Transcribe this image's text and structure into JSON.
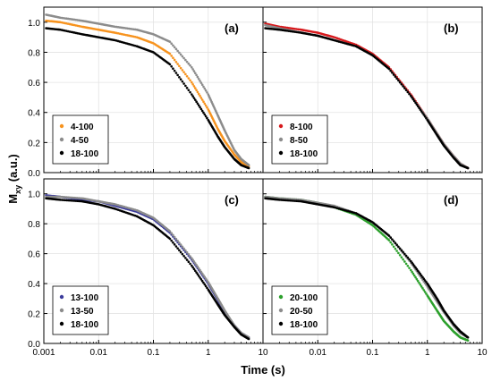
{
  "figure": {
    "ylabel_main": "M",
    "ylabel_sub": "xy",
    "ylabel_unit": " (a.u.)",
    "xlabel": "Time (s)"
  },
  "colors": {
    "orange": "#f7931e",
    "gray": "#8c8c8c",
    "black": "#000000",
    "red": "#d7191c",
    "blue": "#3c3c9c",
    "green": "#2ca02c"
  },
  "chart_data": [
    {
      "panel": "(a)",
      "type": "scatter",
      "xscale": "log",
      "xlim": [
        0.001,
        10
      ],
      "ylim": [
        0,
        1.1
      ],
      "xticks": [
        "0.001",
        "0.01",
        "0.1",
        "1",
        "10"
      ],
      "yticks": [
        "0.0",
        "0.2",
        "0.4",
        "0.6",
        "0.8",
        "1.0"
      ],
      "legend": "bottom-left",
      "grid": true,
      "series": [
        {
          "name": "4-100",
          "color": "#f7931e",
          "x": [
            0.0011,
            0.002,
            0.005,
            0.01,
            0.02,
            0.05,
            0.1,
            0.2,
            0.5,
            1,
            1.5,
            2,
            3,
            4,
            5.5
          ],
          "y": [
            1.01,
            1.0,
            0.97,
            0.95,
            0.93,
            0.9,
            0.86,
            0.79,
            0.6,
            0.42,
            0.29,
            0.21,
            0.12,
            0.07,
            0.04
          ]
        },
        {
          "name": "4-50",
          "color": "#8c8c8c",
          "x": [
            0.0011,
            0.002,
            0.005,
            0.01,
            0.02,
            0.05,
            0.1,
            0.2,
            0.5,
            1,
            1.5,
            2,
            3,
            4,
            5.5
          ],
          "y": [
            1.05,
            1.03,
            1.01,
            0.99,
            0.97,
            0.95,
            0.92,
            0.87,
            0.7,
            0.52,
            0.38,
            0.28,
            0.15,
            0.09,
            0.05
          ]
        },
        {
          "name": "18-100",
          "color": "#000000",
          "x": [
            0.0011,
            0.002,
            0.005,
            0.01,
            0.02,
            0.05,
            0.1,
            0.2,
            0.5,
            1,
            1.5,
            2,
            3,
            4,
            5.5
          ],
          "y": [
            0.96,
            0.95,
            0.92,
            0.9,
            0.88,
            0.84,
            0.8,
            0.72,
            0.52,
            0.35,
            0.24,
            0.17,
            0.09,
            0.05,
            0.03
          ]
        }
      ]
    },
    {
      "panel": "(b)",
      "type": "scatter",
      "xscale": "log",
      "xlim": [
        0.001,
        10
      ],
      "ylim": [
        0,
        1.1
      ],
      "xticks": [
        "0.001",
        "0.01",
        "0.1",
        "1",
        "10"
      ],
      "yticks": [
        "0.0",
        "0.2",
        "0.4",
        "0.6",
        "0.8",
        "1.0"
      ],
      "legend": "bottom-left",
      "grid": true,
      "series": [
        {
          "name": "8-100",
          "color": "#d7191c",
          "x": [
            0.0011,
            0.002,
            0.005,
            0.01,
            0.02,
            0.05,
            0.1,
            0.2,
            0.5,
            1,
            1.5,
            2,
            3,
            4,
            5.5
          ],
          "y": [
            0.99,
            0.97,
            0.95,
            0.93,
            0.9,
            0.85,
            0.79,
            0.7,
            0.52,
            0.36,
            0.26,
            0.19,
            0.11,
            0.06,
            0.03
          ]
        },
        {
          "name": "8-50",
          "color": "#8c8c8c",
          "x": [
            0.0011,
            0.002,
            0.005,
            0.01,
            0.02,
            0.05,
            0.1,
            0.2,
            0.5,
            1,
            1.5,
            2,
            3,
            4,
            5.5
          ],
          "y": [
            0.98,
            0.96,
            0.93,
            0.91,
            0.88,
            0.84,
            0.78,
            0.69,
            0.51,
            0.36,
            0.26,
            0.19,
            0.11,
            0.06,
            0.03
          ]
        },
        {
          "name": "18-100",
          "color": "#000000",
          "x": [
            0.0011,
            0.002,
            0.005,
            0.01,
            0.02,
            0.05,
            0.1,
            0.2,
            0.5,
            1,
            1.5,
            2,
            3,
            4,
            5.5
          ],
          "y": [
            0.96,
            0.95,
            0.93,
            0.91,
            0.88,
            0.84,
            0.78,
            0.69,
            0.51,
            0.35,
            0.25,
            0.18,
            0.1,
            0.05,
            0.03
          ]
        }
      ]
    },
    {
      "panel": "(c)",
      "type": "scatter",
      "xscale": "log",
      "xlim": [
        0.001,
        10
      ],
      "ylim": [
        0,
        1.1
      ],
      "xticks": [
        "0.001",
        "0.01",
        "0.1",
        "1",
        "10"
      ],
      "yticks": [
        "0.0",
        "0.2",
        "0.4",
        "0.6",
        "0.8",
        "1.0"
      ],
      "legend": "bottom-left",
      "grid": true,
      "series": [
        {
          "name": "13-100",
          "color": "#3c3c9c",
          "x": [
            0.0011,
            0.002,
            0.005,
            0.01,
            0.02,
            0.05,
            0.1,
            0.2,
            0.5,
            1,
            1.5,
            2,
            3,
            4,
            5.5
          ],
          "y": [
            0.99,
            0.98,
            0.96,
            0.95,
            0.92,
            0.88,
            0.83,
            0.74,
            0.56,
            0.4,
            0.29,
            0.21,
            0.12,
            0.07,
            0.04
          ]
        },
        {
          "name": "13-50",
          "color": "#8c8c8c",
          "x": [
            0.0011,
            0.002,
            0.005,
            0.01,
            0.02,
            0.05,
            0.1,
            0.2,
            0.5,
            1,
            1.5,
            2,
            3,
            4,
            5.5
          ],
          "y": [
            0.98,
            0.98,
            0.97,
            0.95,
            0.93,
            0.89,
            0.84,
            0.75,
            0.57,
            0.41,
            0.3,
            0.22,
            0.12,
            0.07,
            0.04
          ]
        },
        {
          "name": "18-100",
          "color": "#000000",
          "x": [
            0.0011,
            0.002,
            0.005,
            0.01,
            0.02,
            0.05,
            0.1,
            0.2,
            0.5,
            1,
            1.5,
            2,
            3,
            4,
            5.5
          ],
          "y": [
            0.97,
            0.96,
            0.95,
            0.93,
            0.9,
            0.85,
            0.79,
            0.7,
            0.52,
            0.36,
            0.26,
            0.19,
            0.11,
            0.06,
            0.03
          ]
        }
      ]
    },
    {
      "panel": "(d)",
      "type": "scatter",
      "xscale": "log",
      "xlim": [
        0.001,
        10
      ],
      "ylim": [
        0,
        1.1
      ],
      "xticks": [
        "0.001",
        "0.01",
        "0.1",
        "1",
        "10"
      ],
      "yticks": [
        "0.0",
        "0.2",
        "0.4",
        "0.6",
        "0.8",
        "1.0"
      ],
      "legend": "bottom-left",
      "grid": true,
      "series": [
        {
          "name": "20-100",
          "color": "#2ca02c",
          "x": [
            0.0011,
            0.002,
            0.005,
            0.01,
            0.02,
            0.05,
            0.1,
            0.2,
            0.5,
            1,
            1.5,
            2,
            3,
            4,
            5.5
          ],
          "y": [
            0.98,
            0.97,
            0.96,
            0.94,
            0.91,
            0.86,
            0.79,
            0.69,
            0.49,
            0.32,
            0.22,
            0.15,
            0.08,
            0.04,
            0.02
          ]
        },
        {
          "name": "20-50",
          "color": "#8c8c8c",
          "x": [
            0.0011,
            0.002,
            0.005,
            0.01,
            0.02,
            0.05,
            0.1,
            0.2,
            0.5,
            1,
            1.5,
            2,
            3,
            4,
            5.5
          ],
          "y": [
            0.98,
            0.97,
            0.96,
            0.94,
            0.92,
            0.87,
            0.81,
            0.72,
            0.54,
            0.38,
            0.28,
            0.21,
            0.12,
            0.07,
            0.04
          ]
        },
        {
          "name": "18-100",
          "color": "#000000",
          "x": [
            0.0011,
            0.002,
            0.005,
            0.01,
            0.02,
            0.05,
            0.1,
            0.2,
            0.5,
            1,
            1.5,
            2,
            3,
            4,
            5.5
          ],
          "y": [
            0.97,
            0.96,
            0.95,
            0.93,
            0.91,
            0.87,
            0.81,
            0.72,
            0.55,
            0.4,
            0.3,
            0.22,
            0.13,
            0.08,
            0.04
          ]
        }
      ]
    }
  ]
}
